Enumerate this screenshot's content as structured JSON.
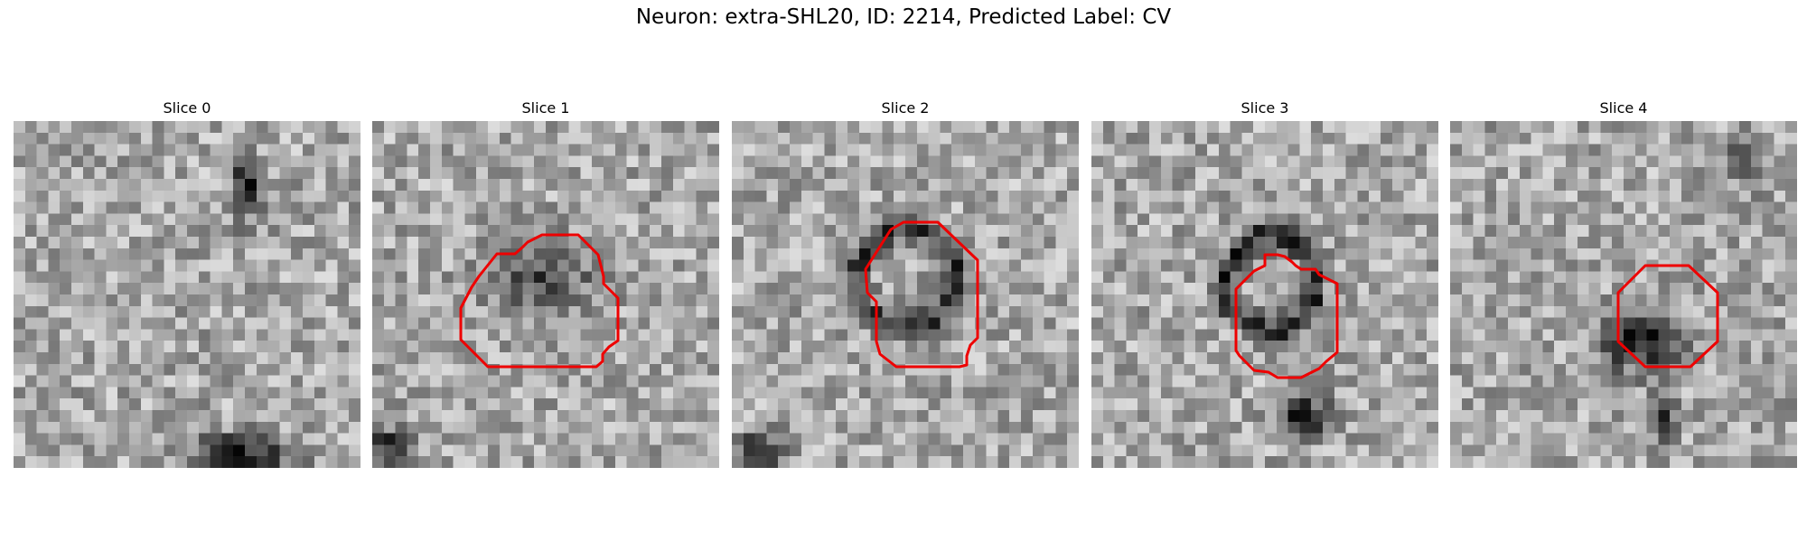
{
  "figure": {
    "title": "Neuron: extra-SHL20, ID: 2214, Predicted Label: CV"
  },
  "panels": [
    {
      "title": "Slice 0"
    },
    {
      "title": "Slice 1"
    },
    {
      "title": "Slice 2"
    },
    {
      "title": "Slice 3"
    },
    {
      "title": "Slice 4"
    }
  ],
  "colors": {
    "outline": "#ee0000",
    "colormap": "grayscale"
  }
}
